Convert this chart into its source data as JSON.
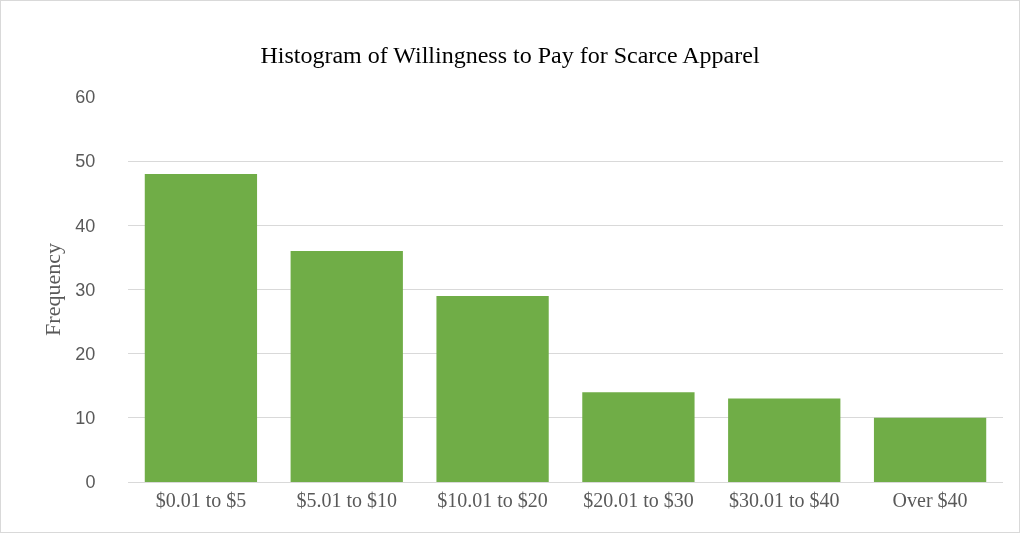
{
  "chart_data": {
    "type": "bar",
    "title": "Histogram of Willingness to Pay for Scarce Apparel",
    "ylabel": "Frequency",
    "categories": [
      "$0.01 to $5",
      "$5.01 to $10",
      "$10.01 to $20",
      "$20.01 to $30",
      "$30.01 to $40",
      "Over $40"
    ],
    "series": [
      {
        "color": "#70ad47",
        "values": [
          48,
          36,
          29,
          14,
          13,
          10
        ]
      }
    ],
    "ylim": [
      0,
      60
    ],
    "yticks": [
      0,
      10,
      20,
      30,
      40,
      50,
      60
    ],
    "grid": "y",
    "legend": false
  }
}
